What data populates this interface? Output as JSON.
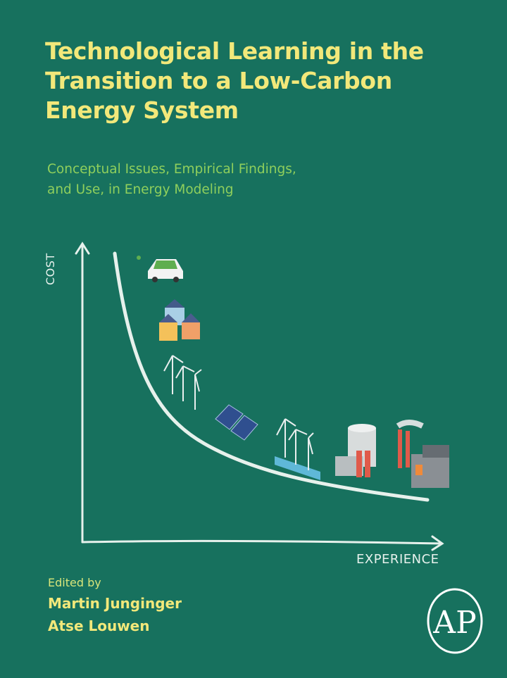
{
  "cover": {
    "title_lines": [
      "Technological Learning in the",
      "Transition to a Low-Carbon",
      "Energy System"
    ],
    "subtitle_lines": [
      "Conceptual Issues, Empirical Findings,",
      "and Use, in Energy Modeling"
    ],
    "y_axis_label": "COST",
    "x_axis_label": "EXPERIENCE",
    "edited_by": "Edited by",
    "editors": [
      "Martin Junginger",
      "Atse Louwen"
    ],
    "publisher_logo_text": "AP",
    "illustrations": [
      "electric-car",
      "solar-houses",
      "wind-turbines",
      "solar-panels",
      "offshore-wind-turbines",
      "power-plant",
      "coal-factory"
    ]
  },
  "colors": {
    "background": "#17715e",
    "title": "#f2e87a",
    "subtitle": "#8fcf5c",
    "line": "#e6f1ec"
  }
}
